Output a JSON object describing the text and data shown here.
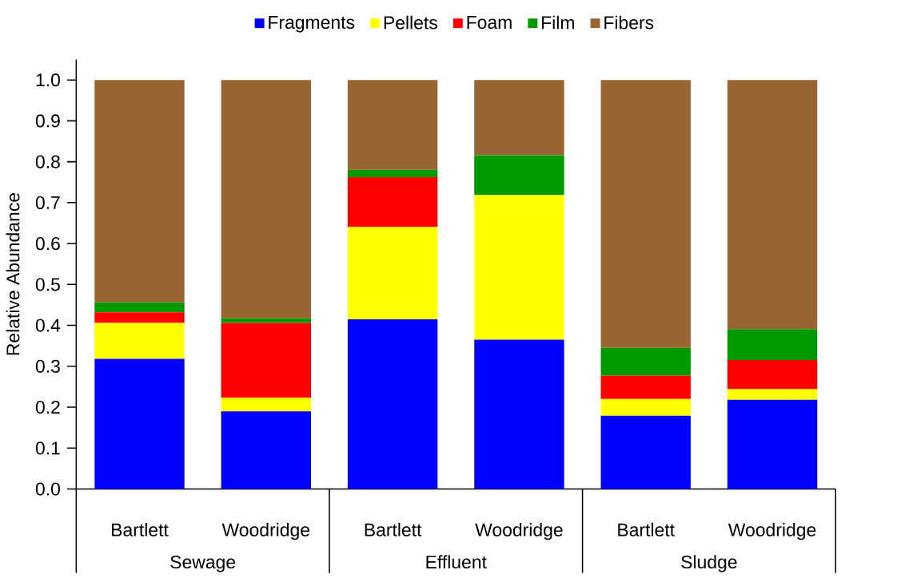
{
  "chart_data": {
    "type": "bar",
    "stacked": true,
    "ylabel": "Relative Abundance",
    "categories": [
      "Bartlett",
      "Woodridge",
      "Bartlett",
      "Woodridge",
      "Bartlett",
      "Woodridge"
    ],
    "annotations": [
      "Sewage",
      "Effluent",
      "Sludge"
    ],
    "series": [
      {
        "name": "Fragments",
        "color": "#0000ff",
        "values": [
          0.318,
          0.19,
          0.415,
          0.365,
          0.179,
          0.218
        ]
      },
      {
        "name": "Pellets",
        "color": "#ffff00",
        "values": [
          0.088,
          0.033,
          0.226,
          0.354,
          0.041,
          0.026
        ]
      },
      {
        "name": "Foam",
        "color": "#ff0000",
        "values": [
          0.026,
          0.183,
          0.121,
          0,
          0.057,
          0.071
        ]
      },
      {
        "name": "Film",
        "color": "#009900",
        "values": [
          0.024,
          0.011,
          0.018,
          0.097,
          0.068,
          0.076
        ]
      },
      {
        "name": "Fibers",
        "color": "#996633",
        "values": [
          0.544,
          0.583,
          0.22,
          0.184,
          0.655,
          0.609
        ]
      }
    ],
    "ylim": [
      0,
      1.05
    ],
    "yticks": [
      {
        "value": 0,
        "label": "0.0"
      },
      {
        "value": 0.1,
        "label": "0.1"
      },
      {
        "value": 0.2,
        "label": "0.2"
      },
      {
        "value": 0.3,
        "label": "0.3"
      },
      {
        "value": 0.4,
        "label": "0.4"
      },
      {
        "value": 0.5,
        "label": "0.5"
      },
      {
        "value": 0.6,
        "label": "0.6"
      },
      {
        "value": 0.7,
        "label": "0.7"
      },
      {
        "value": 0.8,
        "label": "0.8"
      },
      {
        "value": 0.9,
        "label": "0.9"
      },
      {
        "value": 1.0,
        "label": "1.0"
      }
    ],
    "legend": "top",
    "grid": false
  }
}
